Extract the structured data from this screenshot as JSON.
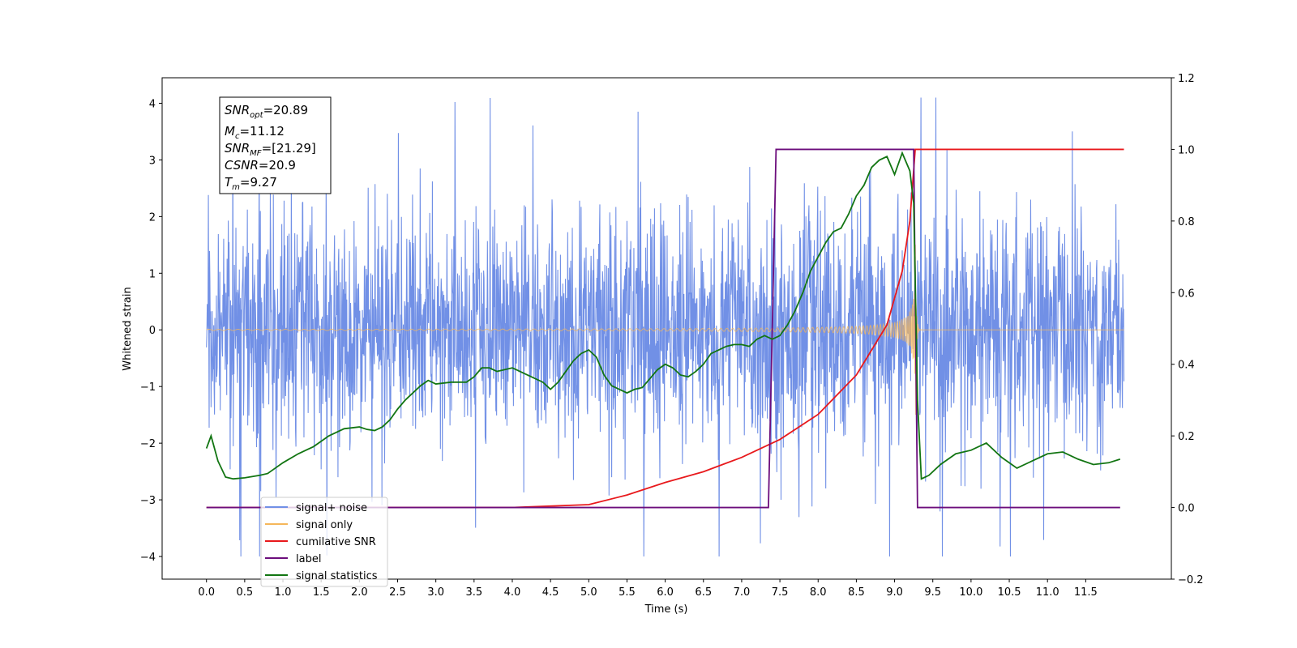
{
  "chart_data": {
    "type": "line",
    "xlabel": "Time (s)",
    "ylabel": "Whitened strain",
    "xlim": [
      -0.58,
      12.62
    ],
    "ylim": [
      -4.4,
      4.45
    ],
    "ylim_right": [
      -0.2,
      1.2
    ],
    "x_ticks": [
      "0.0",
      "0.5",
      "1.0",
      "1.5",
      "2.0",
      "2.5",
      "3.0",
      "3.5",
      "4.0",
      "4.5",
      "5.0",
      "5.5",
      "6.0",
      "6.5",
      "7.0",
      "7.5",
      "8.0",
      "8.5",
      "9.0",
      "9.5",
      "10.0",
      "10.5",
      "11.0",
      "11.5"
    ],
    "y_ticks": [
      "4",
      "3",
      "2",
      "1",
      "0",
      "−1",
      "−2",
      "−3",
      "−4"
    ],
    "y_right_ticks": [
      "1.2",
      "1.0",
      "0.8",
      "0.6",
      "0.4",
      "0.2",
      "0.0",
      "−0.2"
    ],
    "annotation": {
      "snr_opt": "=20.89",
      "mc": "=11.12",
      "snr_mf": "=[21.29]",
      "csnr": "=20.9",
      "tm": "=9.27"
    },
    "legend": [
      "signal+ noise",
      "signal only",
      "cumilative SNR",
      "label",
      "signal statistics"
    ],
    "legend_placement": "lower-left",
    "colors": {
      "noise": "#7190e6",
      "signal": "#f5b75a",
      "cumulative_snr": "#e8191c",
      "label": "#6c0d7c",
      "statistics": "#127512"
    },
    "series": [
      {
        "name": "signal+ noise",
        "axis": "left",
        "note_range": [
          -4,
          4.1
        ],
        "x": [
          0.0,
          12.0
        ]
      },
      {
        "name": "signal only",
        "axis": "left",
        "x": [
          0.0,
          12.0
        ],
        "merger_time": 9.27
      },
      {
        "name": "cumilative SNR",
        "axis": "right",
        "x": [
          0.0,
          4.0,
          5.0,
          5.5,
          6.0,
          6.5,
          7.0,
          7.5,
          8.0,
          8.5,
          8.9,
          9.1,
          9.2,
          9.27,
          9.3,
          12.0
        ],
        "y": [
          0.0,
          0.0,
          0.008,
          0.035,
          0.07,
          0.1,
          0.14,
          0.19,
          0.26,
          0.37,
          0.51,
          0.66,
          0.8,
          1.0,
          1.0,
          1.0
        ]
      },
      {
        "name": "label",
        "axis": "right",
        "x": [
          0.0,
          7.35,
          7.45,
          9.25,
          9.3,
          11.95
        ],
        "y": [
          0.0,
          0.0,
          1.0,
          1.0,
          0.0,
          0.0
        ]
      },
      {
        "name": "signal statistics",
        "axis": "right",
        "x": [
          0.0,
          0.06,
          0.15,
          0.25,
          0.35,
          0.5,
          0.7,
          0.8,
          0.9,
          1.0,
          1.2,
          1.4,
          1.6,
          1.8,
          2.0,
          2.1,
          2.2,
          2.3,
          2.4,
          2.5,
          2.6,
          2.7,
          2.8,
          2.9,
          3.0,
          3.2,
          3.4,
          3.5,
          3.6,
          3.7,
          3.8,
          4.0,
          4.1,
          4.3,
          4.4,
          4.5,
          4.6,
          4.7,
          4.8,
          4.9,
          5.0,
          5.1,
          5.2,
          5.3,
          5.4,
          5.5,
          5.6,
          5.7,
          5.8,
          5.9,
          6.0,
          6.1,
          6.2,
          6.3,
          6.4,
          6.5,
          6.6,
          6.7,
          6.8,
          6.9,
          7.0,
          7.1,
          7.2,
          7.3,
          7.4,
          7.5,
          7.6,
          7.7,
          7.8,
          7.9,
          8.0,
          8.1,
          8.2,
          8.3,
          8.4,
          8.5,
          8.6,
          8.7,
          8.8,
          8.9,
          9.0,
          9.1,
          9.2,
          9.25,
          9.3,
          9.35,
          9.45,
          9.6,
          9.8,
          10.0,
          10.2,
          10.4,
          10.6,
          10.8,
          11.0,
          11.2,
          11.4,
          11.6,
          11.8,
          11.95
        ],
        "y": [
          0.165,
          0.2,
          0.13,
          0.085,
          0.08,
          0.083,
          0.09,
          0.095,
          0.11,
          0.125,
          0.15,
          0.17,
          0.2,
          0.22,
          0.225,
          0.218,
          0.215,
          0.225,
          0.245,
          0.275,
          0.3,
          0.32,
          0.34,
          0.355,
          0.345,
          0.35,
          0.35,
          0.365,
          0.39,
          0.39,
          0.38,
          0.39,
          0.38,
          0.36,
          0.35,
          0.33,
          0.35,
          0.38,
          0.41,
          0.43,
          0.44,
          0.42,
          0.37,
          0.34,
          0.33,
          0.32,
          0.33,
          0.335,
          0.36,
          0.385,
          0.4,
          0.39,
          0.37,
          0.365,
          0.38,
          0.4,
          0.43,
          0.44,
          0.45,
          0.455,
          0.455,
          0.45,
          0.47,
          0.48,
          0.47,
          0.48,
          0.51,
          0.55,
          0.6,
          0.66,
          0.7,
          0.74,
          0.77,
          0.78,
          0.82,
          0.87,
          0.9,
          0.95,
          0.97,
          0.98,
          0.93,
          0.99,
          0.94,
          0.85,
          0.3,
          0.08,
          0.09,
          0.12,
          0.15,
          0.16,
          0.18,
          0.14,
          0.11,
          0.13,
          0.15,
          0.155,
          0.135,
          0.12,
          0.125,
          0.135
        ]
      }
    ]
  }
}
